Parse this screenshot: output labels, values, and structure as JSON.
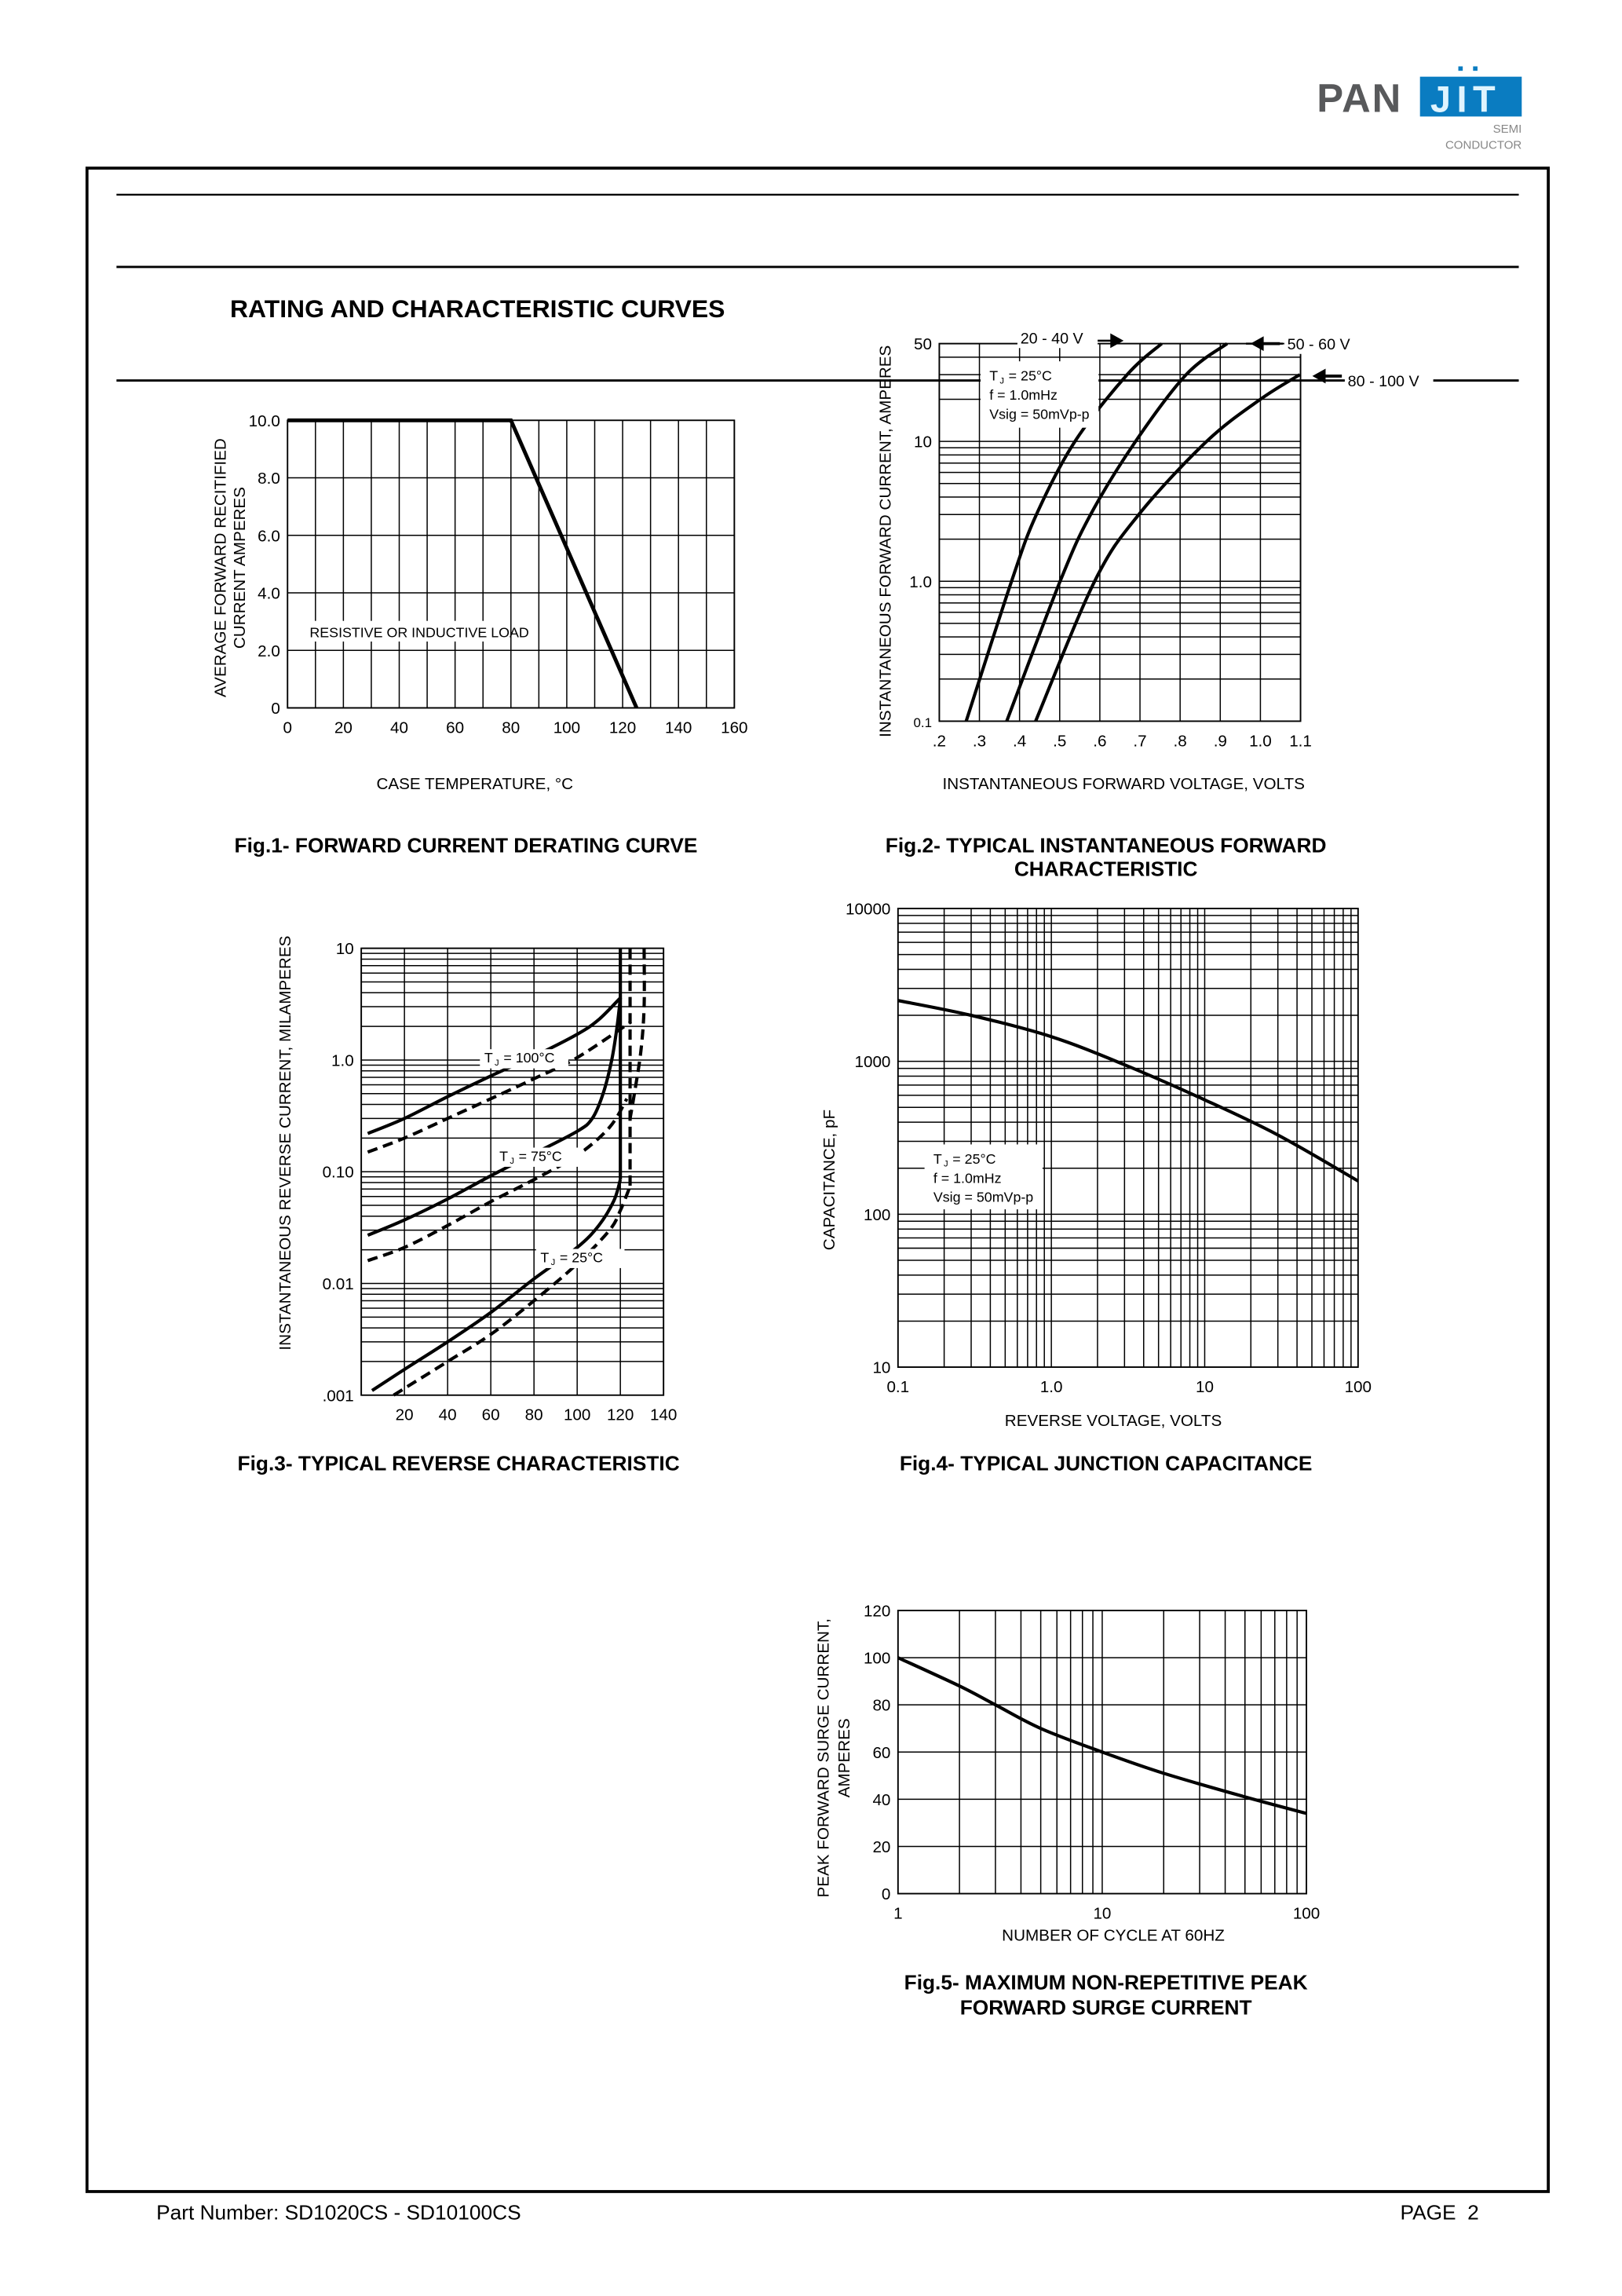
{
  "logo": {
    "left": "PAN",
    "right": "JIT",
    "line1": "SEMI",
    "line2": "CONDUCTOR",
    "gray": "#58595b",
    "blue": "#0a7cc1"
  },
  "title": "RATING AND CHARACTERISTIC CURVES",
  "footer": {
    "part_number": "Part Number: SD1020CS - SD10100CS",
    "page": "PAGE  2"
  },
  "chart_data": [
    {
      "id": "fig1",
      "type": "line",
      "caption": "Fig.1- FORWARD CURRENT DERATING CURVE",
      "ylabel_lines": [
        "AVERAGE FORWARD RECITIFIED",
        "CURRENT AMPERES"
      ],
      "xlabel": "CASE TEMPERATURE, °C",
      "annotation": "RESISTIVE OR INDUCTIVE LOAD",
      "xscale": "linear",
      "yscale": "linear",
      "xlim": [
        0,
        160
      ],
      "ylim": [
        0,
        10
      ],
      "grid": true,
      "x_ticks": {
        "labels": [
          "0",
          "20",
          "40",
          "60",
          "80",
          "100",
          "120",
          "140",
          "160"
        ],
        "values": [
          0,
          20,
          40,
          60,
          80,
          100,
          120,
          140,
          160
        ]
      },
      "y_ticks": {
        "labels": [
          "0",
          "2.0",
          "4.0",
          "6.0",
          "8.0",
          "10.0"
        ],
        "values": [
          0,
          2,
          4,
          6,
          8,
          10
        ]
      },
      "series": [
        {
          "points": [
            [
              0,
              10
            ],
            [
              80,
              10
            ],
            [
              125,
              0
            ]
          ],
          "dashed": false
        }
      ]
    },
    {
      "id": "fig2",
      "type": "line",
      "caption_lines": [
        "Fig.2- TYPICAL INSTANTANEOUS FORWARD",
        "CHARACTERISTIC"
      ],
      "ylabel": "INSTANTANEOUS FORWARD CURRENT, AMPERES",
      "xlabel": "INSTANTANEOUS FORWARD VOLTAGE, VOLTS",
      "xscale": "linear",
      "yscale": "log",
      "xlim": [
        0.2,
        1.1
      ],
      "ylim": [
        0.1,
        50
      ],
      "grid": true,
      "x_ticks": {
        "labels": [
          ".2",
          ".3",
          ".4",
          ".5",
          ".6",
          ".7",
          ".8",
          ".9",
          "1.0",
          "1.1"
        ],
        "values": [
          0.2,
          0.3,
          0.4,
          0.5,
          0.6,
          0.7,
          0.8,
          0.9,
          1.0,
          1.1
        ]
      },
      "y_ticks": {
        "labels": [
          "0.1",
          "1.0",
          "10",
          "50"
        ],
        "values": [
          0.1,
          1,
          10,
          50
        ]
      },
      "legend": [
        {
          "sym": "T",
          "sub": "J",
          "rest": "= 25°C"
        },
        {
          "text": "f = 1.0mHz"
        },
        {
          "text": "Vsig = 50mVp-p"
        }
      ],
      "series": [
        {
          "name": "20 - 40 V",
          "points": [
            [
              0.267,
              0.1
            ],
            [
              0.38,
              1
            ],
            [
              0.442,
              3
            ],
            [
              0.538,
              10
            ],
            [
              0.668,
              30
            ],
            [
              0.754,
              50
            ]
          ],
          "dashed": false
        },
        {
          "name": "50 - 60 V",
          "points": [
            [
              0.368,
              0.1
            ],
            [
              0.501,
              1
            ],
            [
              0.577,
              3
            ],
            [
              0.689,
              10
            ],
            [
              0.815,
              30
            ],
            [
              0.917,
              50
            ]
          ],
          "dashed": false
        },
        {
          "name": "80 - 100 V",
          "points": [
            [
              0.44,
              0.1
            ],
            [
              0.587,
              1
            ],
            [
              0.697,
              3
            ],
            [
              0.866,
              10
            ],
            [
              1.0,
              20
            ],
            [
              1.098,
              30
            ]
          ],
          "dashed": false
        }
      ]
    },
    {
      "id": "fig3",
      "type": "line",
      "caption": "Fig.3- TYPICAL REVERSE CHARACTERISTIC",
      "ylabel": "INSTANTANEOUS REVERSE CURRENT, MILAMPERES",
      "xscale": "linear",
      "yscale": "log",
      "xlim": [
        0,
        140
      ],
      "ylim": [
        0.001,
        10
      ],
      "grid": true,
      "x_ticks": {
        "labels": [
          "20",
          "40",
          "60",
          "80",
          "100",
          "120",
          "140"
        ],
        "values": [
          20,
          40,
          60,
          80,
          100,
          120,
          140
        ]
      },
      "y_ticks": {
        "labels": [
          ".001",
          "0.01",
          "0.10",
          "1.0",
          "10"
        ],
        "values": [
          0.001,
          0.01,
          0.1,
          1,
          10
        ]
      },
      "labels": [
        {
          "sym": "T",
          "sub": "J",
          "rest": " = 100°C",
          "at": [
            57,
            0.95
          ]
        },
        {
          "sym": "T",
          "sub": "J",
          "rest": " = 75°C",
          "at": [
            64,
            0.125
          ]
        },
        {
          "sym": "T",
          "sub": "J",
          "rest": " = 25°C",
          "at": [
            83,
            0.0155
          ]
        }
      ],
      "series": [
        {
          "points": [
            [
              3,
              0.22
            ],
            [
              20,
              0.3
            ],
            [
              40,
              0.47
            ],
            [
              60,
              0.72
            ],
            [
              80,
              1.08
            ],
            [
              100,
              1.7
            ],
            [
              110,
              2.3
            ],
            [
              120,
              3.6
            ]
          ],
          "dashed": false
        },
        {
          "points": [
            [
              120,
              10
            ],
            [
              120,
              0.085
            ]
          ],
          "dashed": false
        },
        {
          "points": [
            [
              3,
              0.027
            ],
            [
              20,
              0.037
            ],
            [
              40,
              0.057
            ],
            [
              60,
              0.092
            ],
            [
              80,
              0.145
            ],
            [
              100,
              0.23
            ],
            [
              107,
              0.3
            ],
            [
              112,
              0.5
            ],
            [
              116,
              1.0
            ],
            [
              118.5,
              2.0
            ],
            [
              120,
              3.6
            ]
          ],
          "dashed": false
        },
        {
          "points": [
            [
              5,
              0.0011
            ],
            [
              20,
              0.0017
            ],
            [
              40,
              0.003
            ],
            [
              60,
              0.0055
            ],
            [
              80,
              0.011
            ],
            [
              100,
              0.021
            ],
            [
              110,
              0.033
            ],
            [
              117,
              0.055
            ],
            [
              120,
              0.085
            ]
          ],
          "dashed": false
        },
        {
          "points": [
            [
              3,
              0.15
            ],
            [
              20,
              0.2
            ],
            [
              40,
              0.3
            ],
            [
              60,
              0.45
            ],
            [
              80,
              0.68
            ],
            [
              100,
              1.05
            ],
            [
              125,
              2.2
            ]
          ],
          "dashed": true
        },
        {
          "points": [
            [
              3,
              0.016
            ],
            [
              20,
              0.021
            ],
            [
              40,
              0.033
            ],
            [
              60,
              0.054
            ],
            [
              80,
              0.085
            ],
            [
              100,
              0.14
            ],
            [
              115,
              0.25
            ],
            [
              123,
              0.45
            ]
          ],
          "dashed": true
        },
        {
          "points": [
            [
              15,
              0.001
            ],
            [
              40,
              0.002
            ],
            [
              60,
              0.0035
            ],
            [
              80,
              0.007
            ],
            [
              100,
              0.015
            ],
            [
              115,
              0.03
            ],
            [
              120,
              0.045
            ],
            [
              124,
              0.07
            ]
          ],
          "dashed": true
        },
        {
          "points": [
            [
              124.5,
              10
            ],
            [
              124.5,
              0.07
            ]
          ],
          "dashed": true
        },
        {
          "points": [
            [
              131,
              10
            ],
            [
              131,
              3
            ],
            [
              129.5,
              1.2
            ],
            [
              126.5,
              0.5
            ],
            [
              124.5,
              0.3
            ]
          ],
          "dashed": true
        }
      ]
    },
    {
      "id": "fig4",
      "type": "line",
      "caption": "Fig.4- TYPICAL JUNCTION CAPACITANCE",
      "ylabel": "CAPACITANCE, pF",
      "xlabel": "REVERSE VOLTAGE, VOLTS",
      "xscale": "log",
      "yscale": "log",
      "xlim": [
        0.1,
        100
      ],
      "ylim": [
        10,
        10000
      ],
      "grid": true,
      "x_ticks": {
        "labels": [
          "0.1",
          "1.0",
          "10",
          "100"
        ],
        "values": [
          0.1,
          1,
          10,
          100
        ]
      },
      "y_ticks": {
        "labels": [
          "10",
          "100",
          "1000",
          "10000"
        ],
        "values": [
          10,
          100,
          1000,
          10000
        ]
      },
      "legend": [
        {
          "sym": "T",
          "sub": "J",
          "rest": "= 25°C"
        },
        {
          "text": "f = 1.0mHz"
        },
        {
          "text": "Vsig = 50mVp-p"
        }
      ],
      "series": [
        {
          "points": [
            [
              0.1,
              2500
            ],
            [
              0.3,
              2000
            ],
            [
              1,
              1450
            ],
            [
              3,
              950
            ],
            [
              10,
              560
            ],
            [
              30,
              330
            ],
            [
              100,
              165
            ]
          ],
          "dashed": false
        }
      ]
    },
    {
      "id": "fig5",
      "type": "line",
      "caption_lines": [
        "Fig.5- MAXIMUM NON-REPETITIVE PEAK",
        "FORWARD SURGE CURRENT"
      ],
      "ylabel_lines": [
        "PEAK FORWARD SURGE CURRENT,",
        "AMPERES"
      ],
      "xlabel": "NUMBER OF CYCLE AT 60HZ",
      "xscale": "log",
      "yscale": "linear",
      "xlim": [
        1,
        100
      ],
      "ylim": [
        0,
        120
      ],
      "grid": true,
      "x_ticks": {
        "labels": [
          "1",
          "10",
          "100"
        ],
        "values": [
          1,
          10,
          100
        ]
      },
      "y_ticks": {
        "labels": [
          "0",
          "20",
          "40",
          "60",
          "80",
          "100",
          "120"
        ],
        "values": [
          0,
          20,
          40,
          60,
          80,
          100,
          120
        ]
      },
      "series": [
        {
          "points": [
            [
              1,
              100
            ],
            [
              2,
              88
            ],
            [
              3,
              80
            ],
            [
              5,
              70
            ],
            [
              10,
              60
            ],
            [
              20,
              51
            ],
            [
              50,
              41
            ],
            [
              100,
              34
            ]
          ],
          "dashed": false
        }
      ]
    }
  ]
}
